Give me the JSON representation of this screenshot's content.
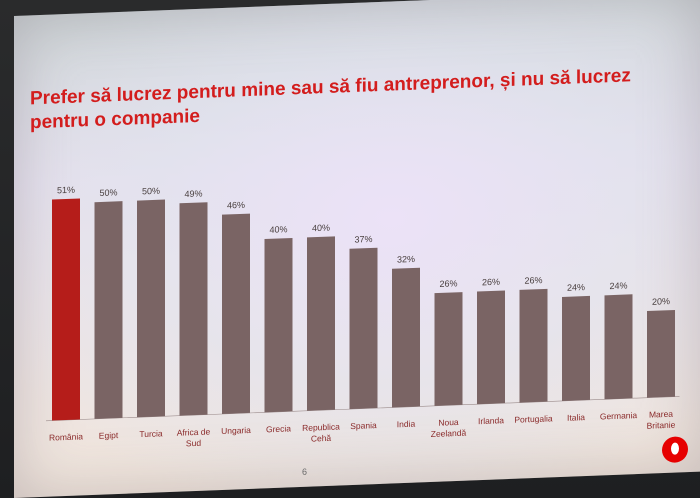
{
  "colors": {
    "highlight": "#b51d1a",
    "bar": "#7a6464",
    "title": "#d31d1d",
    "label": "#8a2a2a",
    "value": "#4a4040"
  },
  "page": {
    "number": "6",
    "logo": "vodafone-logo"
  },
  "chart_data": {
    "type": "bar",
    "title": "Prefer să lucrez pentru mine sau să fiu antreprenor, și nu să lucrez pentru o companie",
    "xlabel": "",
    "ylabel": "",
    "ylim": [
      0,
      60
    ],
    "grid": false,
    "categories": [
      "România",
      "Egipt",
      "Turcia",
      "Africa de Sud",
      "Ungaria",
      "Grecia",
      "Republica Cehă",
      "Spania",
      "India",
      "Noua Zeelandă",
      "Irlanda",
      "Portugalia",
      "Italia",
      "Germania",
      "Marea Britanie"
    ],
    "values": [
      51,
      50,
      50,
      49,
      46,
      40,
      40,
      37,
      32,
      26,
      26,
      26,
      24,
      24,
      20
    ],
    "data_labels": [
      "51%",
      "50%",
      "50%",
      "49%",
      "46%",
      "40%",
      "40%",
      "37%",
      "32%",
      "26%",
      "26%",
      "26%",
      "24%",
      "24%",
      "20%"
    ],
    "highlight_index": 0
  }
}
